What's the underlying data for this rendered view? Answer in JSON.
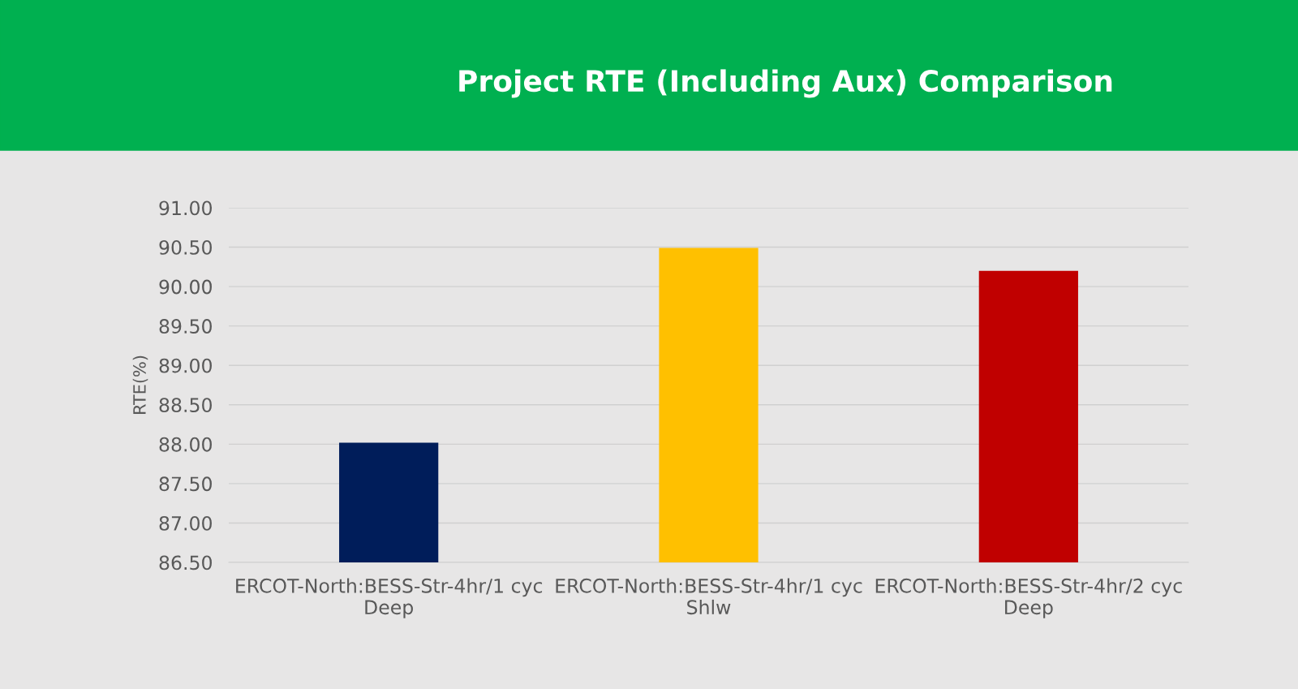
{
  "chart_data": {
    "type": "bar",
    "title": "Project RTE (Including Aux) Comparison",
    "ylabel": "RTE(%)",
    "categories": [
      "ERCOT-North:BESS-Str-4hr/1 cyc\nDeep",
      "ERCOT-North:BESS-Str-4hr/1 cyc\nShlw",
      "ERCOT-North:BESS-Str-4hr/2 cyc\nDeep"
    ],
    "values": [
      88.02,
      90.49,
      90.2
    ],
    "colors": [
      "#001d5a",
      "#ffc000",
      "#c00000"
    ],
    "ylim": [
      86.5,
      91.0
    ],
    "yticks": [
      {
        "value": 86.5,
        "label": "86.50"
      },
      {
        "value": 87.0,
        "label": "87.00"
      },
      {
        "value": 87.5,
        "label": "87.50"
      },
      {
        "value": 88.0,
        "label": "88.00"
      },
      {
        "value": 88.5,
        "label": "88.50"
      },
      {
        "value": 89.0,
        "label": "89.00"
      },
      {
        "value": 89.5,
        "label": "89.50"
      },
      {
        "value": 90.0,
        "label": "90.00"
      },
      {
        "value": 90.5,
        "label": "90.50"
      },
      {
        "value": 91.0,
        "label": "91.00"
      }
    ],
    "grid": "y"
  }
}
